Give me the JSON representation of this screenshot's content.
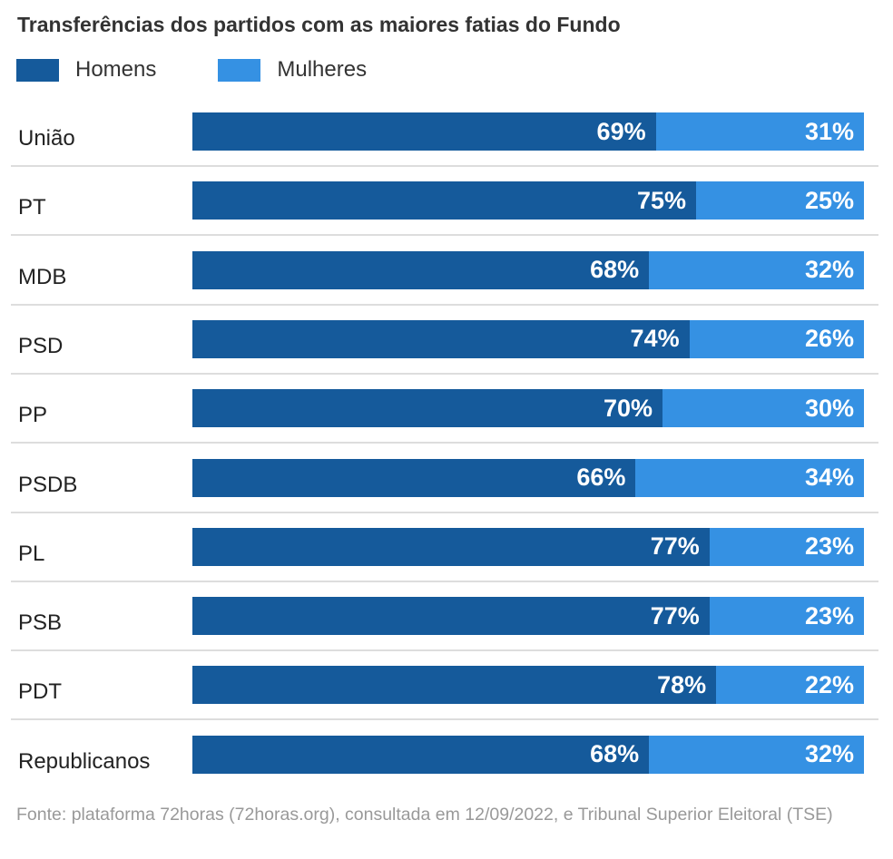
{
  "chart_data": {
    "type": "bar",
    "stacked": true,
    "orientation": "horizontal",
    "title": "Transferências dos partidos com as maiores fatias do Fundo",
    "categories": [
      "União",
      "PT",
      "MDB",
      "PSD",
      "PP",
      "PSDB",
      "PL",
      "PSB",
      "PDT",
      "Republicanos"
    ],
    "series": [
      {
        "name": "Homens",
        "color": "#155a9b",
        "values": [
          69,
          75,
          68,
          74,
          70,
          66,
          77,
          77,
          78,
          68
        ]
      },
      {
        "name": "Mulheres",
        "color": "#3591e3",
        "values": [
          31,
          25,
          32,
          26,
          30,
          34,
          23,
          23,
          22,
          32
        ]
      }
    ],
    "unit": "%",
    "legend": "top-left",
    "source": "Fonte: plataforma 72horas (72horas.org), consultada em 12/09/2022, e Tribunal Superior Eleitoral (TSE)"
  }
}
